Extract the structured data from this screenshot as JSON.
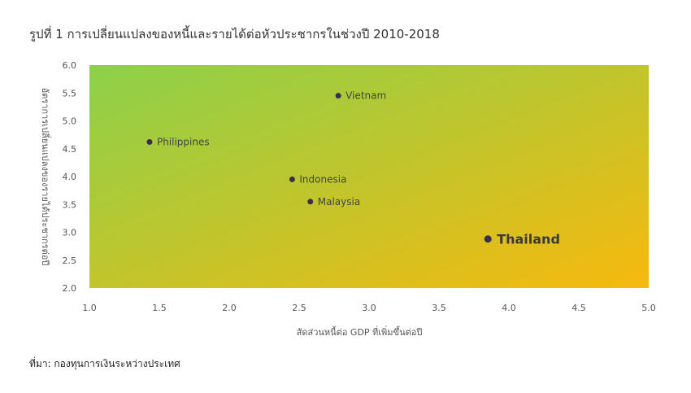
{
  "title": "รูปที่ 1 การเปลี่ยนแปลงของหนี้และรายได้ต่อหัวประชากรในช่วงปี  2010-2018",
  "source": "ที่มา: กองทุนการเงินระหว่างประเทศ",
  "chart_data": {
    "type": "scatter",
    "xlabel": "สัดส่วนหนี้ต่อ GDP ที่เพิ่มขึ้นต่อปี",
    "ylabel": "อัตราการเปลี่ยนแปลงของรายได้ประชากรต่อปี",
    "xlim": [
      1.0,
      5.0
    ],
    "ylim": [
      2.0,
      6.0
    ],
    "xticks": [
      "1.0",
      "1.5",
      "2.0",
      "2.5",
      "3.0",
      "3.5",
      "4.0",
      "4.5",
      "5.0"
    ],
    "yticks": [
      "2.0",
      "2.5",
      "3.0",
      "3.5",
      "4.0",
      "4.5",
      "5.0",
      "5.5",
      "6.0"
    ],
    "grid": false,
    "background_gradient": [
      "#8cd14a",
      "#f7b90e"
    ],
    "point_color": "#3b2d52",
    "points": [
      {
        "label": "Vietnam",
        "x": 2.78,
        "y": 5.45,
        "highlight": false
      },
      {
        "label": "Philippines",
        "x": 1.43,
        "y": 4.62,
        "highlight": false
      },
      {
        "label": "Indonesia",
        "x": 2.45,
        "y": 3.95,
        "highlight": false
      },
      {
        "label": "Malaysia",
        "x": 2.58,
        "y": 3.55,
        "highlight": false
      },
      {
        "label": "Thailand",
        "x": 3.85,
        "y": 2.88,
        "highlight": true
      }
    ]
  }
}
